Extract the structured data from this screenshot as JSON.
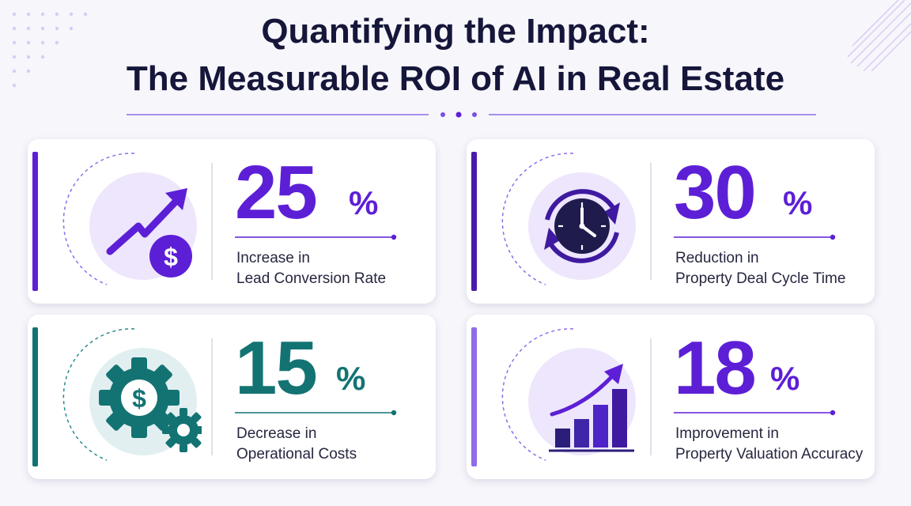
{
  "header": {
    "title_line1": "Quantifying the Impact:",
    "title_line2": "The Measurable ROI of AI in Real Estate"
  },
  "metrics": [
    {
      "value": "25",
      "unit": "%",
      "label_line1": "Increase in",
      "label_line2": "Lead Conversion Rate",
      "icon": "trend-up-dollar-icon",
      "color": "#5d1fd6"
    },
    {
      "value": "30",
      "unit": "%",
      "label_line1": "Reduction in",
      "label_line2": "Property Deal Cycle Time",
      "icon": "clock-cycle-icon",
      "color": "#5d1fd6"
    },
    {
      "value": "15",
      "unit": "%",
      "label_line1": "Decrease in",
      "label_line2": "Operational Costs",
      "icon": "gears-dollar-icon",
      "color": "#137373"
    },
    {
      "value": "18",
      "unit": "%",
      "label_line1": "Improvement in",
      "label_line2": "Property Valuation Accuracy",
      "icon": "bar-growth-icon",
      "color": "#5d1fd6"
    }
  ],
  "colors": {
    "title": "#15163a",
    "purple": "#5d1fd6",
    "purple_light": "#8f6ce8",
    "teal": "#137373",
    "background": "#f7f6fb"
  }
}
